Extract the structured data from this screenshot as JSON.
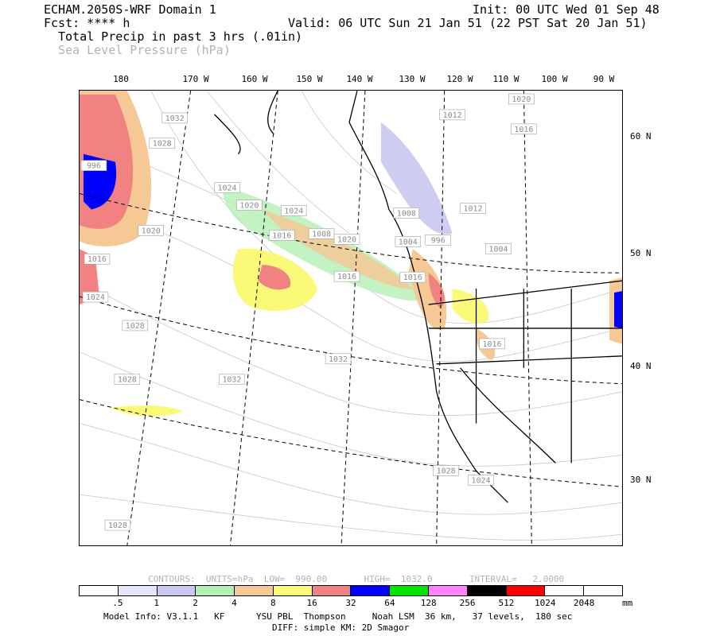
{
  "header": {
    "model": "ECHAM.2050S-WRF Domain 1",
    "init": "Init: 00 UTC Wed 01 Sep 48",
    "fcst": "Fcst: **** h",
    "valid": "Valid: 06 UTC Sun 21 Jan 51 (22 PST Sat 20 Jan 51)",
    "field1": "Total Precip in past 3 hrs (.01in)",
    "field2": "Sea Level Pressure (hPa)"
  },
  "lon_labels": [
    "180",
    "170 W",
    "160 W",
    "150 W",
    "140 W",
    "130 W",
    "120 W",
    "110 W",
    "100 W",
    "90 W"
  ],
  "lat_labels": [
    "60 N",
    "50 N",
    "40 N",
    "30 N"
  ],
  "isobar_labels": [
    "1032",
    "1028",
    "996",
    "1024",
    "1020",
    "1020",
    "1016",
    "1016",
    "1024",
    "1028",
    "1028",
    "1032",
    "1032",
    "1024",
    "1020",
    "1008",
    "1016",
    "1004",
    "1008",
    "1016",
    "1012",
    "996",
    "1004",
    "1016",
    "1020",
    "1012",
    "1016",
    "1028",
    "1024",
    "1028"
  ],
  "contour_info": "CONTOURS:  UNITS=hPa  LOW=  990.00       HIGH=  1032.0       INTERVAL=   2.0000",
  "legend": {
    "colors": [
      "#ffffff",
      "#e6e6fa",
      "#c8c8f0",
      "#b4f0b4",
      "#f5c896",
      "#fafa78",
      "#f08282",
      "#0000ff",
      "#00e600",
      "#ff82ff",
      "#000000",
      "#ff0000",
      "#ffffff",
      "#ffffff"
    ],
    "labels": [
      ".5",
      "1",
      "2",
      "4",
      "8",
      "16",
      "32",
      "64",
      "128",
      "256",
      "512",
      "1024",
      "2048"
    ],
    "units": "mm"
  },
  "footer": {
    "model_info": "Model Info: V3.1.1   KF      YSU PBL  Thompson     Noah LSM  36 km,   37 levels,  180 sec",
    "diff": "DIFF: simple KM: 2D Smagor"
  }
}
